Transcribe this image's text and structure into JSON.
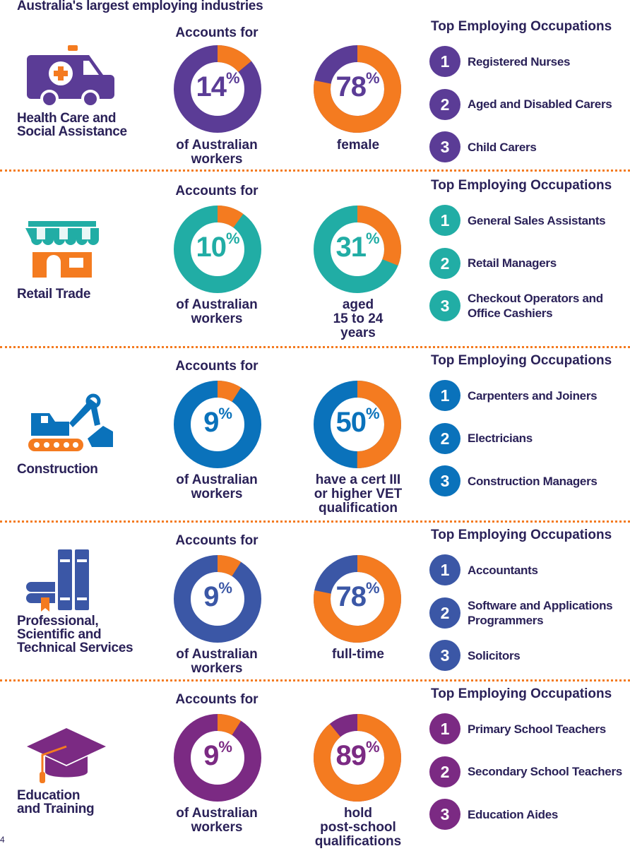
{
  "title": "Australia's largest employing industries",
  "colors": {
    "orange": "#f47b20",
    "navy": "#2a2158"
  },
  "occ_heading": "Top Employing Occupations",
  "accounts_top": "Accounts for",
  "accounts_bottom": [
    "of Australian",
    "workers"
  ],
  "page_number": "4",
  "sections": [
    {
      "name": [
        "Health Care and",
        "Social Assistance"
      ],
      "icon": "ambulance-icon",
      "color": "#5b3c96",
      "share_value": "14",
      "share_pct": 14,
      "stat_value": "78",
      "stat_pct": 78,
      "stat_label": [
        "female"
      ],
      "occupations": [
        "Registered Nurses",
        "Aged and Disabled Carers",
        "Child Carers"
      ]
    },
    {
      "name": [
        "Retail Trade"
      ],
      "icon": "shop-icon",
      "color": "#21ada5",
      "share_value": "10",
      "share_pct": 10,
      "stat_value": "31",
      "stat_pct": 31,
      "stat_label": [
        "aged",
        "15 to 24",
        "years"
      ],
      "occupations": [
        "General Sales Assistants",
        "Retail Managers",
        "Checkout Operators and Office Cashiers"
      ]
    },
    {
      "name": [
        "Construction"
      ],
      "icon": "excavator-icon",
      "color": "#0a72bb",
      "share_value": "9",
      "share_pct": 9,
      "stat_value": "50",
      "stat_pct": 50,
      "stat_label": [
        "have a cert III",
        "or higher VET",
        "qualification"
      ],
      "occupations": [
        "Carpenters and Joiners",
        "Electricians",
        "Construction Managers"
      ]
    },
    {
      "name": [
        "Professional,",
        "Scientific and",
        "Technical Services"
      ],
      "icon": "books-icon",
      "color": "#3b57a6",
      "share_value": "9",
      "share_pct": 9,
      "stat_value": "78",
      "stat_pct": 78,
      "stat_label": [
        "full-time"
      ],
      "occupations": [
        "Accountants",
        "Software and Applications Programmers",
        "Solicitors"
      ]
    },
    {
      "name": [
        "Education",
        "and Training"
      ],
      "icon": "graduation-cap-icon",
      "color": "#7b2a83",
      "share_value": "9",
      "share_pct": 9,
      "stat_value": "89",
      "stat_pct": 89,
      "stat_label": [
        "hold",
        "post-school",
        "qualifications"
      ],
      "occupations": [
        "Primary School Teachers",
        "Secondary School Teachers",
        "Education Aides"
      ]
    }
  ]
}
